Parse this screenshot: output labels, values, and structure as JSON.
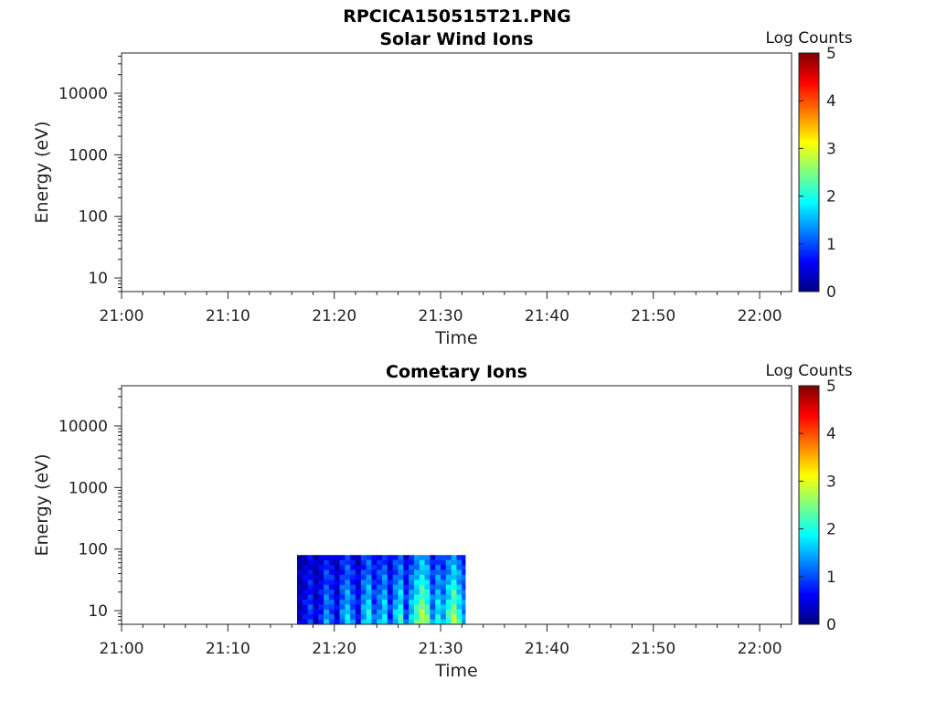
{
  "figure_title": "RPCICA150515T21.PNG",
  "colormap": [
    "#00007f",
    "#0000ff",
    "#007fff",
    "#00ffff",
    "#7fff7f",
    "#ffff00",
    "#ff7f00",
    "#ff0000",
    "#7f0000"
  ],
  "chart_data": [
    {
      "type": "heatmap",
      "title": "Solar Wind Ions",
      "xlabel": "Time",
      "ylabel": "Energy (eV)",
      "y_scale": "log",
      "ylim": [
        6,
        45000
      ],
      "x_range": [
        "21:00",
        "22:03"
      ],
      "x_ticks": [
        "21:00",
        "21:10",
        "21:20",
        "21:30",
        "21:40",
        "21:50",
        "22:00"
      ],
      "y_ticks": [
        10,
        100,
        1000,
        10000
      ],
      "y_tick_labels": [
        "10",
        "100",
        "1000",
        "10000"
      ],
      "colorbar": {
        "label": "Log Counts",
        "range": [
          0,
          5
        ],
        "ticks": [
          "0",
          "1",
          "2",
          "3",
          "4",
          "5"
        ]
      },
      "data": []
    },
    {
      "type": "heatmap",
      "title": "Cometary Ions",
      "xlabel": "Time",
      "ylabel": "Energy (eV)",
      "y_scale": "log",
      "ylim": [
        6,
        45000
      ],
      "x_range": [
        "21:00",
        "22:03"
      ],
      "x_ticks": [
        "21:00",
        "21:10",
        "21:20",
        "21:30",
        "21:40",
        "21:50",
        "22:00"
      ],
      "y_ticks": [
        10,
        100,
        1000,
        10000
      ],
      "y_tick_labels": [
        "10",
        "100",
        "1000",
        "10000"
      ],
      "colorbar": {
        "label": "Log Counts",
        "range": [
          0,
          5
        ],
        "ticks": [
          "0",
          "1",
          "2",
          "3",
          "4",
          "5"
        ]
      },
      "data_extent": {
        "time_start": "21:16.5",
        "time_end": "21:32.3",
        "energy_min": 6,
        "energy_max": 80
      },
      "data": [
        {
          "t": "21:16.5",
          "v": 0.3
        },
        {
          "t": "21:17.0",
          "v": 0.6
        },
        {
          "t": "21:17.5",
          "v": 0.9
        },
        {
          "t": "21:18.0",
          "v": 0.4
        },
        {
          "t": "21:18.5",
          "v": 0.7
        },
        {
          "t": "21:19.0",
          "v": 1.3
        },
        {
          "t": "21:19.5",
          "v": 1.0
        },
        {
          "t": "21:20.0",
          "v": 0.5
        },
        {
          "t": "21:20.5",
          "v": 1.2
        },
        {
          "t": "21:21.0",
          "v": 1.6
        },
        {
          "t": "21:21.5",
          "v": 1.1
        },
        {
          "t": "21:22.0",
          "v": 0.6
        },
        {
          "t": "21:22.5",
          "v": 1.4
        },
        {
          "t": "21:23.0",
          "v": 1.8
        },
        {
          "t": "21:23.5",
          "v": 1.0
        },
        {
          "t": "21:24.0",
          "v": 1.3
        },
        {
          "t": "21:24.5",
          "v": 1.7
        },
        {
          "t": "21:25.0",
          "v": 0.8
        },
        {
          "t": "21:25.5",
          "v": 1.5
        },
        {
          "t": "21:26.0",
          "v": 1.9
        },
        {
          "t": "21:26.5",
          "v": 0.9
        },
        {
          "t": "21:27.0",
          "v": 1.6
        },
        {
          "t": "21:27.5",
          "v": 2.1
        },
        {
          "t": "21:28.0",
          "v": 2.6
        },
        {
          "t": "21:28.5",
          "v": 2.2
        },
        {
          "t": "21:29.0",
          "v": 1.2
        },
        {
          "t": "21:29.5",
          "v": 1.8
        },
        {
          "t": "21:30.0",
          "v": 1.4
        },
        {
          "t": "21:30.5",
          "v": 2.0
        },
        {
          "t": "21:31.0",
          "v": 2.5
        },
        {
          "t": "21:31.5",
          "v": 1.9
        },
        {
          "t": "21:32.0",
          "v": 1.3
        }
      ]
    }
  ]
}
